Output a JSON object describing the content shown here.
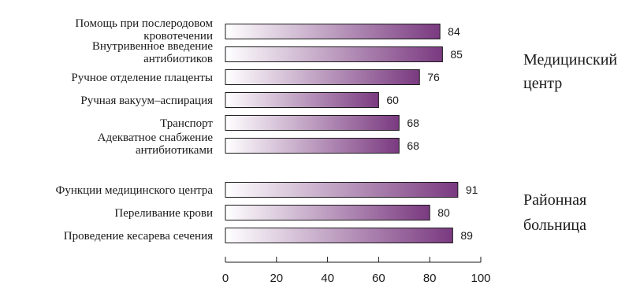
{
  "chart_data": {
    "type": "bar",
    "orientation": "horizontal",
    "xlim": [
      0,
      100
    ],
    "ticks": [
      0,
      20,
      40,
      60,
      80,
      100
    ],
    "grid": false,
    "groups": [
      {
        "name": "Медицинский центр",
        "categories": [
          [
            "Помощь при послеродовом",
            "кровотечении"
          ],
          [
            "Внутривенное введение",
            "антибиотиков"
          ],
          [
            "Ручное отделение плаценты"
          ],
          [
            "Ручная вакуум–аспирация"
          ],
          [
            "Транспорт"
          ],
          [
            "Адекватное снабжение",
            "антибиотиками"
          ]
        ],
        "values": [
          84,
          85,
          76,
          60,
          68,
          68
        ]
      },
      {
        "name": "Районная больница",
        "categories": [
          [
            "Функции медицинского центра"
          ],
          [
            "Переливание крови"
          ],
          [
            "Проведение кесарева сечения"
          ]
        ],
        "values": [
          91,
          80,
          89
        ]
      }
    ],
    "group_label_lines": [
      [
        "Медицинский",
        "центр"
      ],
      [
        "Районная",
        "больница"
      ]
    ],
    "colors": {
      "bar_start": "#ffffff",
      "bar_end": "#7a3a80",
      "outline": "#1a1a1a"
    }
  }
}
